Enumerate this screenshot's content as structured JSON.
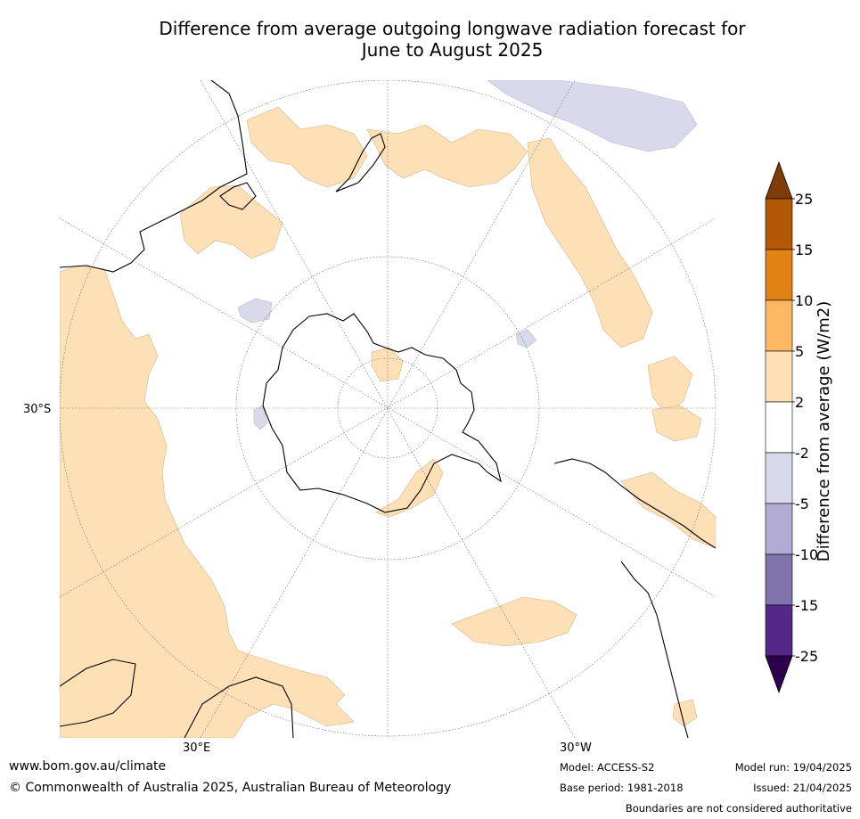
{
  "title_line1": "Difference from average outgoing longwave radiation forecast for",
  "title_line2": "June to August 2025",
  "colorbar": {
    "label": "Difference from average (W/m2)",
    "ticks": [
      "25",
      "15",
      "10",
      "5",
      "2",
      "-2",
      "-5",
      "-10",
      "-15",
      "-25"
    ],
    "colors": [
      "#7f3b08",
      "#b35806",
      "#e08214",
      "#fdb863",
      "#fee0b6",
      "#ffffff",
      "#d8daeb",
      "#b2abd2",
      "#8073ac",
      "#542788",
      "#2d004b"
    ]
  },
  "map_labels": {
    "lat": "30°S",
    "lon_left": "30°E",
    "lon_right": "30°W"
  },
  "footer": {
    "website": "www.bom.gov.au/climate",
    "copyright": "© Commonwealth of Australia 2025, Australian Bureau of Meteorology",
    "model": "Model: ACCESS-S2",
    "base_period": "Base period: 1981-2018",
    "model_run": "Model run: 19/04/2025",
    "issued": "Issued: 21/04/2025",
    "disclaimer": "Boundaries are not considered authoritative"
  }
}
